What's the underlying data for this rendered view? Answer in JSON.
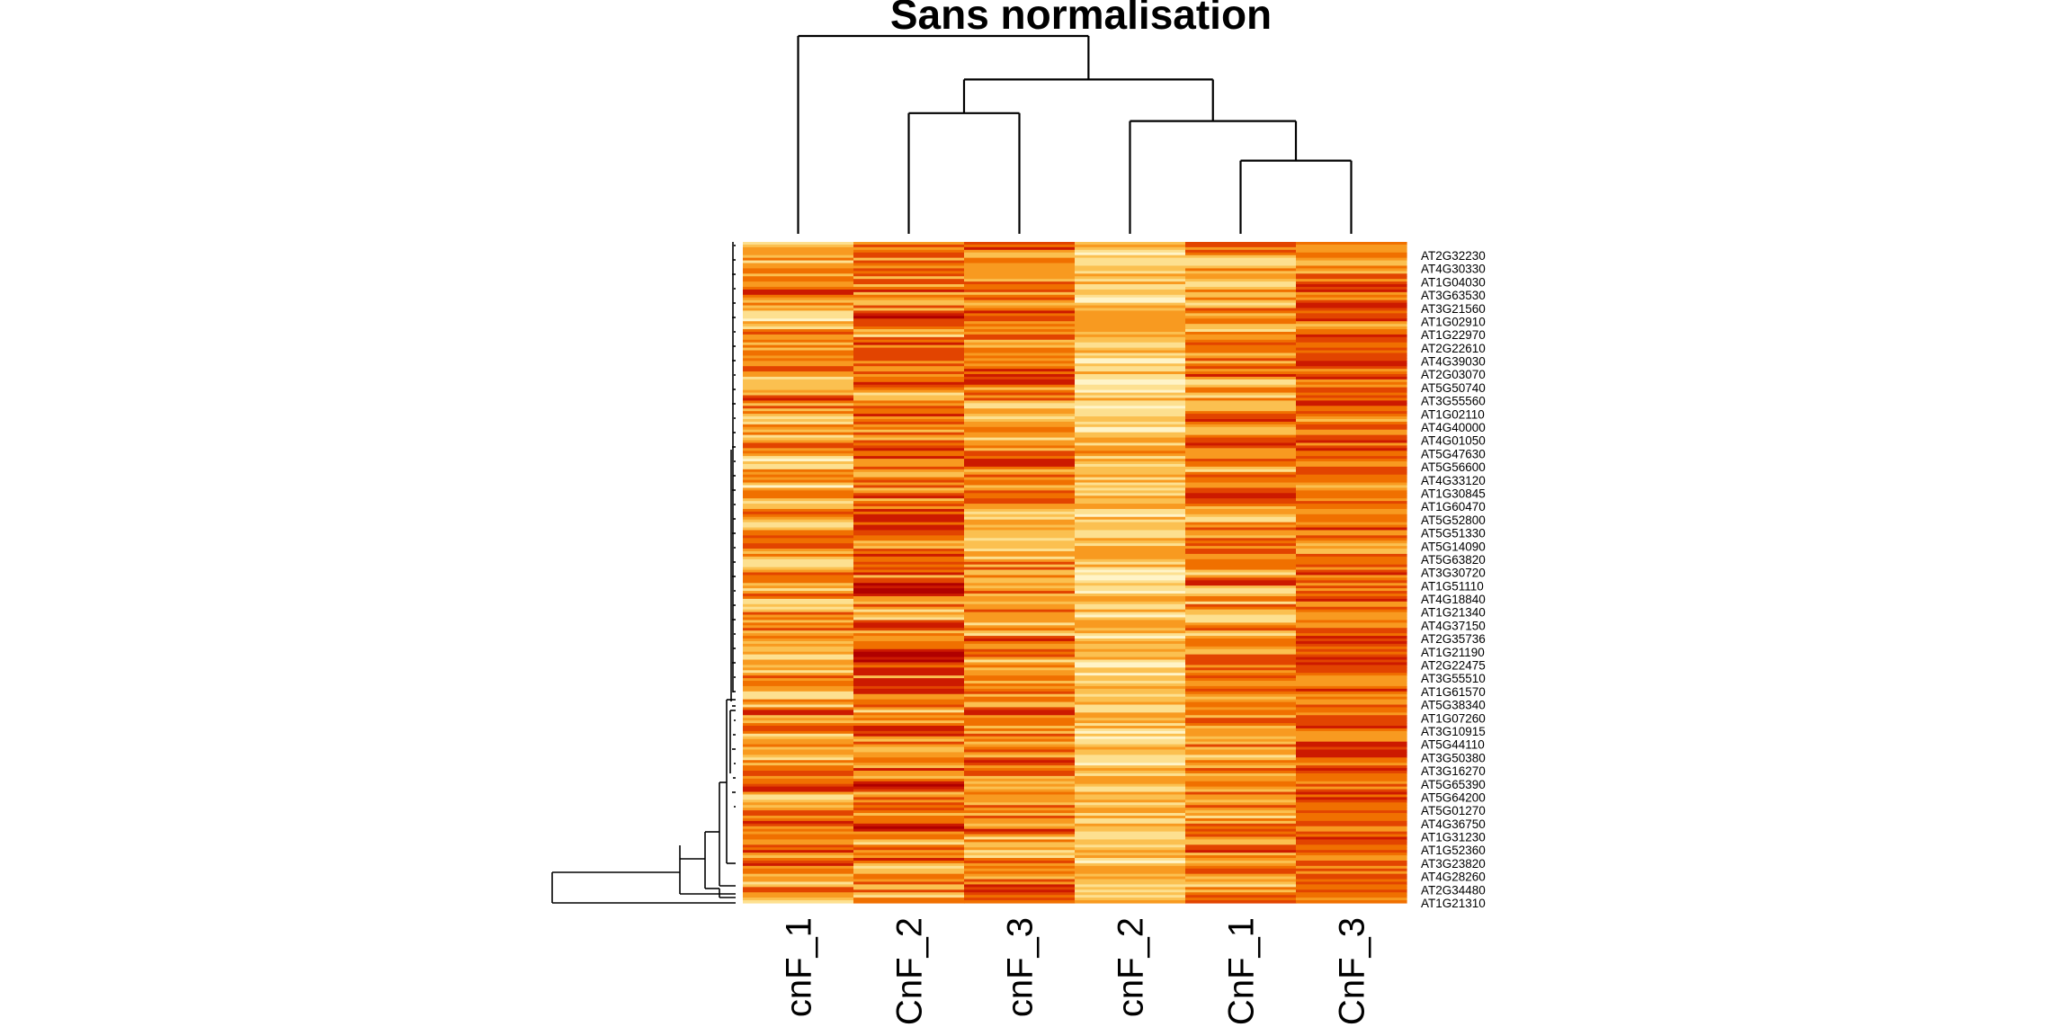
{
  "chart_data": {
    "type": "heatmap",
    "title": "Sans normalisation",
    "column_labels": [
      "cnF_1",
      "CnF_2",
      "cnF_3",
      "cnF_2",
      "CnF_1",
      "CnF_3"
    ],
    "row_labels": [
      "AT2G32230",
      "AT4G30330",
      "AT1G04030",
      "AT3G63530",
      "AT3G21560",
      "AT1G02910",
      "AT1G22970",
      "AT2G22610",
      "AT4G39030",
      "AT2G03070",
      "AT5G50740",
      "AT3G55560",
      "AT1G02110",
      "AT4G40000",
      "AT4G01050",
      "AT5G47630",
      "AT5G56600",
      "AT4G33120",
      "AT1G30845",
      "AT1G60470",
      "AT5G52800",
      "AT5G51330",
      "AT5G14090",
      "AT5G63820",
      "AT3G30720",
      "AT1G51110",
      "AT4G18840",
      "AT1G21340",
      "AT4G37150",
      "AT2G35736",
      "AT1G21190",
      "AT2G22475",
      "AT3G55510",
      "AT1G61570",
      "AT5G38340",
      "AT1G07260",
      "AT3G10915",
      "AT5G44110",
      "AT3G50380",
      "AT3G16270",
      "AT5G65390",
      "AT5G64200",
      "AT5G01270",
      "AT4G36750",
      "AT1G31230",
      "AT1G52360",
      "AT3G23820",
      "AT4G28260",
      "AT2G34480",
      "AT1G21310"
    ],
    "column_dendrogram": {
      "merge_order": [
        [
          "CnF_1",
          "CnF_3"
        ],
        [
          "cnF_2",
          "(CnF_1,CnF_3)"
        ],
        [
          "CnF_2",
          "cnF_3"
        ],
        [
          "(CnF_2,cnF_3)",
          "(cnF_2,(CnF_1,CnF_3))"
        ],
        [
          "cnF_1",
          "rest"
        ]
      ],
      "relative_heights": [
        0.37,
        0.57,
        0.61,
        0.78,
        1.0
      ]
    },
    "colormap": [
      "#b00000",
      "#cc1a00",
      "#e24400",
      "#f07000",
      "#f89a20",
      "#fbc050",
      "#fde090",
      "#fff4c8"
    ],
    "colormap_name": "heat (dark red → pale yellow)",
    "column_profiles": [
      {
        "column": "cnF_1",
        "mean_level": 0.55,
        "spread": 0.42
      },
      {
        "column": "CnF_2",
        "mean_level": 0.45,
        "spread": 0.45
      },
      {
        "column": "cnF_3",
        "mean_level": 0.48,
        "spread": 0.42
      },
      {
        "column": "cnF_2",
        "mean_level": 0.72,
        "spread": 0.28
      },
      {
        "column": "CnF_1",
        "mean_level": 0.52,
        "spread": 0.4
      },
      {
        "column": "CnF_3",
        "mean_level": 0.4,
        "spread": 0.33
      }
    ],
    "n_heat_rows": 250,
    "legend": "none",
    "grid": false
  }
}
